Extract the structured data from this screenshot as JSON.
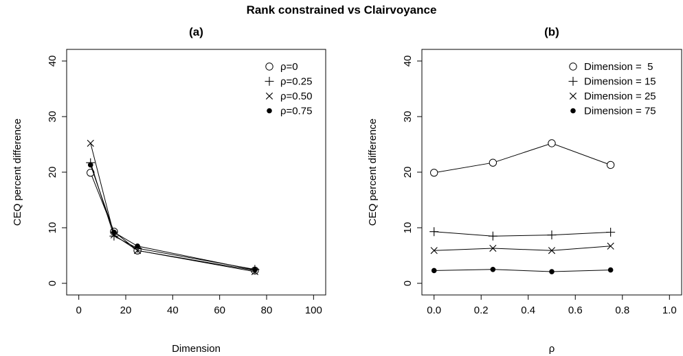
{
  "title": "Rank constrained vs Clairvoyance",
  "chart_data": [
    {
      "type": "line",
      "panel_label": "(a)",
      "xlabel": "Dimension",
      "ylabel": "CEQ percent difference",
      "xlim": [
        0,
        100
      ],
      "ylim": [
        0,
        40
      ],
      "xticks": [
        0,
        20,
        40,
        60,
        80,
        100
      ],
      "yticks": [
        0,
        10,
        20,
        30,
        40
      ],
      "x": [
        5,
        15,
        25,
        75
      ],
      "legend_position": "top-right",
      "grid": false,
      "series": [
        {
          "name": "ρ=0",
          "marker": "circle",
          "values": [
            19.9,
            9.3,
            5.9,
            2.3
          ]
        },
        {
          "name": "ρ=0.25",
          "marker": "plus",
          "values": [
            21.7,
            8.5,
            6.3,
            2.5
          ]
        },
        {
          "name": "ρ=0.50",
          "marker": "cross",
          "values": [
            25.2,
            8.7,
            5.9,
            2.1
          ]
        },
        {
          "name": "ρ=0.75",
          "marker": "dot",
          "values": [
            21.3,
            9.2,
            6.7,
            2.4
          ]
        }
      ]
    },
    {
      "type": "line",
      "panel_label": "(b)",
      "xlabel": "ρ",
      "ylabel": "CEQ percent difference",
      "xlim": [
        0,
        1
      ],
      "ylim": [
        0,
        40
      ],
      "xticks": [
        "0.0",
        "0.2",
        "0.4",
        "0.6",
        "0.8",
        "1.0"
      ],
      "yticks": [
        0,
        10,
        20,
        30,
        40
      ],
      "x": [
        0,
        0.25,
        0.5,
        0.75
      ],
      "legend_position": "top-right",
      "grid": false,
      "series": [
        {
          "name": "Dimension =  5",
          "marker": "circle",
          "values": [
            19.9,
            21.7,
            25.2,
            21.3
          ]
        },
        {
          "name": "Dimension = 15",
          "marker": "plus",
          "values": [
            9.3,
            8.5,
            8.7,
            9.2
          ]
        },
        {
          "name": "Dimension = 25",
          "marker": "cross",
          "values": [
            5.9,
            6.3,
            5.9,
            6.7
          ]
        },
        {
          "name": "Dimension = 75",
          "marker": "dot",
          "values": [
            2.3,
            2.5,
            2.1,
            2.4
          ]
        }
      ]
    }
  ]
}
